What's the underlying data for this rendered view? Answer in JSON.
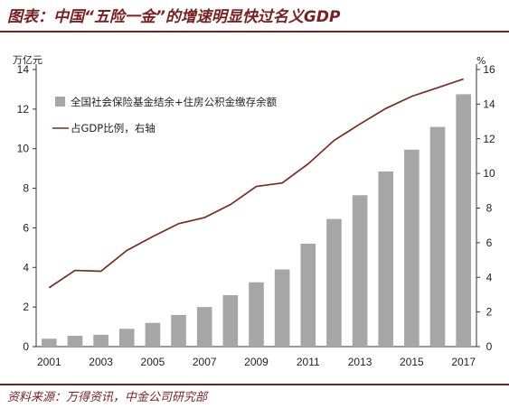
{
  "header": {
    "title": "图表：中国“五险一金”的增速明显快过名义GDP"
  },
  "footer": {
    "source": "资料来源：万得资讯，中金公司研究部"
  },
  "colors": {
    "bar": "#a6a6a6",
    "line": "#7b2a1e",
    "accent": "#7a1f1f"
  },
  "chart_data": {
    "type": "bar",
    "y_left_unit": "万亿元",
    "y_right_unit": "%",
    "ylim_left": [
      0,
      14
    ],
    "ylim_right": [
      0,
      16
    ],
    "yticks_left": [
      "0",
      "2",
      "4",
      "6",
      "8",
      "10",
      "12",
      "14"
    ],
    "yticks_right": [
      "0",
      "2",
      "4",
      "6",
      "8",
      "10",
      "12",
      "14",
      "16"
    ],
    "xtick_labels": [
      "2001",
      "2003",
      "2005",
      "2007",
      "2009",
      "2011",
      "2013",
      "2015",
      "2017"
    ],
    "categories": [
      "2001",
      "2002",
      "2003",
      "2004",
      "2005",
      "2006",
      "2007",
      "2008",
      "2009",
      "2010",
      "2011",
      "2012",
      "2013",
      "2014",
      "2015",
      "2016",
      "2017"
    ],
    "legend_position": "top-left",
    "series": [
      {
        "name": "全国社会保险基金结余+住房公积金缴存余额",
        "type": "bar",
        "axis": "left",
        "values": [
          0.4,
          0.55,
          0.6,
          0.9,
          1.2,
          1.6,
          2.0,
          2.6,
          3.25,
          3.9,
          5.2,
          6.45,
          7.65,
          8.85,
          9.95,
          11.1,
          12.75
        ]
      },
      {
        "name": "占GDP比例，右轴",
        "type": "line",
        "axis": "right",
        "values": [
          3.4,
          4.4,
          4.35,
          5.55,
          6.35,
          7.1,
          7.45,
          8.2,
          9.25,
          9.45,
          10.55,
          11.9,
          12.85,
          13.75,
          14.45,
          14.95,
          15.45
        ]
      }
    ]
  }
}
